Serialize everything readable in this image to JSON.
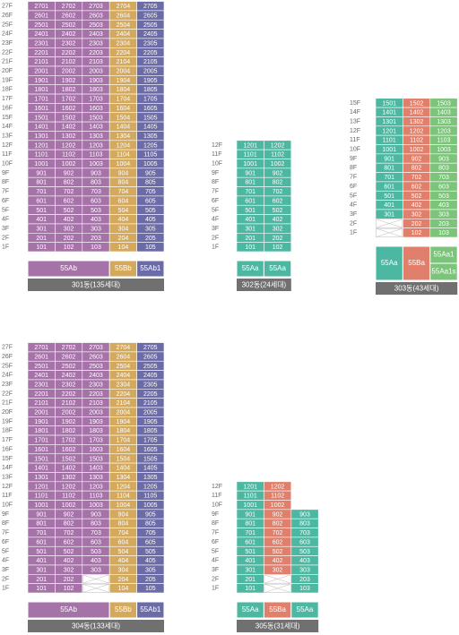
{
  "buildings": [
    {
      "name": "301동(135세대)",
      "colors": [
        "#a673a9",
        "#a673a9",
        "#a673a9",
        "#d5a95c",
        "#6b6ba7"
      ],
      "floors": [
        {
          "label": "27F",
          "units": [
            "2701",
            "2702",
            "2703",
            "2704",
            "2705"
          ]
        },
        {
          "label": "26F",
          "units": [
            "2601",
            "2602",
            "2603",
            "2604",
            "2605"
          ]
        },
        {
          "label": "25F",
          "units": [
            "2501",
            "2502",
            "2503",
            "2504",
            "2505"
          ]
        },
        {
          "label": "24F",
          "units": [
            "2401",
            "2402",
            "2403",
            "2404",
            "2405"
          ]
        },
        {
          "label": "23F",
          "units": [
            "2301",
            "2302",
            "2303",
            "2304",
            "2305"
          ]
        },
        {
          "label": "22F",
          "units": [
            "2201",
            "2202",
            "2203",
            "2204",
            "2205"
          ]
        },
        {
          "label": "21F",
          "units": [
            "2101",
            "2102",
            "2103",
            "2104",
            "2105"
          ]
        },
        {
          "label": "20F",
          "units": [
            "2001",
            "2002",
            "2003",
            "2004",
            "2005"
          ]
        },
        {
          "label": "19F",
          "units": [
            "1901",
            "1902",
            "1903",
            "1904",
            "1905"
          ]
        },
        {
          "label": "18F",
          "units": [
            "1801",
            "1802",
            "1803",
            "1804",
            "1805"
          ]
        },
        {
          "label": "17F",
          "units": [
            "1701",
            "1702",
            "1703",
            "1704",
            "1705"
          ]
        },
        {
          "label": "16F",
          "units": [
            "1601",
            "1602",
            "1603",
            "1604",
            "1605"
          ]
        },
        {
          "label": "15F",
          "units": [
            "1501",
            "1502",
            "1503",
            "1504",
            "1505"
          ]
        },
        {
          "label": "14F",
          "units": [
            "1401",
            "1402",
            "1403",
            "1404",
            "1405"
          ]
        },
        {
          "label": "13F",
          "units": [
            "1301",
            "1302",
            "1303",
            "1304",
            "1305"
          ]
        },
        {
          "label": "12F",
          "units": [
            "1201",
            "1202",
            "1203",
            "1204",
            "1205"
          ]
        },
        {
          "label": "11F",
          "units": [
            "1101",
            "1102",
            "1103",
            "1104",
            "1105"
          ]
        },
        {
          "label": "10F",
          "units": [
            "1001",
            "1002",
            "1003",
            "1004",
            "1005"
          ]
        },
        {
          "label": "9F",
          "units": [
            "901",
            "902",
            "903",
            "904",
            "905"
          ]
        },
        {
          "label": "8F",
          "units": [
            "801",
            "802",
            "803",
            "804",
            "805"
          ]
        },
        {
          "label": "7F",
          "units": [
            "701",
            "702",
            "703",
            "704",
            "705"
          ]
        },
        {
          "label": "6F",
          "units": [
            "601",
            "602",
            "603",
            "604",
            "605"
          ]
        },
        {
          "label": "5F",
          "units": [
            "501",
            "502",
            "503",
            "504",
            "505"
          ]
        },
        {
          "label": "4F",
          "units": [
            "401",
            "402",
            "403",
            "404",
            "405"
          ]
        },
        {
          "label": "3F",
          "units": [
            "301",
            "302",
            "303",
            "304",
            "305"
          ]
        },
        {
          "label": "2F",
          "units": [
            "201",
            "202",
            "203",
            "204",
            "205"
          ]
        },
        {
          "label": "1F",
          "units": [
            "101",
            "102",
            "103",
            "104",
            "105"
          ]
        }
      ],
      "types": [
        {
          "label": "55Ab",
          "span": 3,
          "color": "#a673a9"
        },
        {
          "label": "55Bb",
          "span": 1,
          "color": "#d5a95c"
        },
        {
          "label": "55Ab1",
          "span": 1,
          "color": "#6b6ba7"
        }
      ]
    },
    {
      "name": "302동(24세대)",
      "colors": [
        "#4db8a2",
        "#4db8a2"
      ],
      "floors": [
        {
          "label": "12F",
          "units": [
            "1201",
            "1202"
          ]
        },
        {
          "label": "11F",
          "units": [
            "1101",
            "1102"
          ]
        },
        {
          "label": "10F",
          "units": [
            "1001",
            "1002"
          ]
        },
        {
          "label": "9F",
          "units": [
            "901",
            "902"
          ]
        },
        {
          "label": "8F",
          "units": [
            "801",
            "802"
          ]
        },
        {
          "label": "7F",
          "units": [
            "701",
            "702"
          ]
        },
        {
          "label": "6F",
          "units": [
            "601",
            "602"
          ]
        },
        {
          "label": "5F",
          "units": [
            "501",
            "502"
          ]
        },
        {
          "label": "4F",
          "units": [
            "401",
            "402"
          ]
        },
        {
          "label": "3F",
          "units": [
            "301",
            "302"
          ]
        },
        {
          "label": "2F",
          "units": [
            "201",
            "202"
          ]
        },
        {
          "label": "1F",
          "units": [
            "101",
            "102"
          ]
        }
      ],
      "types": [
        {
          "label": "55Aa",
          "span": 1,
          "color": "#4db8a2"
        },
        {
          "label": "55Aa",
          "span": 1,
          "color": "#4db8a2"
        }
      ]
    },
    {
      "name": "303동(43세대)",
      "colors": [
        "#4db8a2",
        "#e0806c",
        "#7cc47a"
      ],
      "floors": [
        {
          "label": "15F",
          "units": [
            "1501",
            "1502",
            "1503"
          ]
        },
        {
          "label": "14F",
          "units": [
            "1401",
            "1402",
            "1403"
          ]
        },
        {
          "label": "13F",
          "units": [
            "1301",
            "1302",
            "1303"
          ]
        },
        {
          "label": "12F",
          "units": [
            "1201",
            "1202",
            "1203"
          ]
        },
        {
          "label": "11F",
          "units": [
            "1101",
            "1102",
            "1103"
          ]
        },
        {
          "label": "10F",
          "units": [
            "1001",
            "1002",
            "1003"
          ]
        },
        {
          "label": "9F",
          "units": [
            "901",
            "902",
            "903"
          ]
        },
        {
          "label": "8F",
          "units": [
            "801",
            "802",
            "803"
          ]
        },
        {
          "label": "7F",
          "units": [
            "701",
            "702",
            "703"
          ]
        },
        {
          "label": "6F",
          "units": [
            "601",
            "602",
            "603"
          ]
        },
        {
          "label": "5F",
          "units": [
            "501",
            "502",
            "503"
          ]
        },
        {
          "label": "4F",
          "units": [
            "401",
            "402",
            "403"
          ]
        },
        {
          "label": "3F",
          "units": [
            "301",
            "302",
            "303"
          ]
        },
        {
          "label": "2F",
          "units": [
            null,
            "202",
            "203"
          ]
        },
        {
          "label": "1F",
          "units": [
            null,
            "102",
            "103"
          ]
        }
      ],
      "types": [
        {
          "label": "55Aa",
          "span": 1,
          "color": "#4db8a2"
        },
        {
          "label": "55Ba",
          "span": 1,
          "color": "#e0806c"
        },
        {
          "labels": [
            "55Aa1",
            "55Aa1s"
          ],
          "span": 1,
          "color": "#7cc47a"
        }
      ]
    },
    {
      "name": "304동(133세대)",
      "colors": [
        "#a673a9",
        "#a673a9",
        "#a673a9",
        "#d5a95c",
        "#6b6ba7"
      ],
      "floors": [
        {
          "label": "27F",
          "units": [
            "2701",
            "2702",
            "2703",
            "2704",
            "2705"
          ]
        },
        {
          "label": "26F",
          "units": [
            "2601",
            "2602",
            "2603",
            "2604",
            "2605"
          ]
        },
        {
          "label": "25F",
          "units": [
            "2501",
            "2502",
            "2503",
            "2504",
            "2505"
          ]
        },
        {
          "label": "24F",
          "units": [
            "2401",
            "2402",
            "2403",
            "2404",
            "2405"
          ]
        },
        {
          "label": "23F",
          "units": [
            "2301",
            "2302",
            "2303",
            "2304",
            "2305"
          ]
        },
        {
          "label": "22F",
          "units": [
            "2201",
            "2202",
            "2203",
            "2204",
            "2205"
          ]
        },
        {
          "label": "21F",
          "units": [
            "2101",
            "2102",
            "2103",
            "2104",
            "2105"
          ]
        },
        {
          "label": "20F",
          "units": [
            "2001",
            "2002",
            "2003",
            "2004",
            "2005"
          ]
        },
        {
          "label": "19F",
          "units": [
            "1901",
            "1902",
            "1903",
            "1904",
            "1905"
          ]
        },
        {
          "label": "18F",
          "units": [
            "1801",
            "1802",
            "1803",
            "1804",
            "1805"
          ]
        },
        {
          "label": "17F",
          "units": [
            "1701",
            "1702",
            "1703",
            "1704",
            "1705"
          ]
        },
        {
          "label": "16F",
          "units": [
            "1601",
            "1602",
            "1603",
            "1604",
            "1605"
          ]
        },
        {
          "label": "15F",
          "units": [
            "1501",
            "1502",
            "1503",
            "1504",
            "1505"
          ]
        },
        {
          "label": "14F",
          "units": [
            "1401",
            "1402",
            "1403",
            "1404",
            "1405"
          ]
        },
        {
          "label": "13F",
          "units": [
            "1301",
            "1302",
            "1303",
            "1304",
            "1305"
          ]
        },
        {
          "label": "12F",
          "units": [
            "1201",
            "1202",
            "1203",
            "1204",
            "1205"
          ]
        },
        {
          "label": "11F",
          "units": [
            "1101",
            "1102",
            "1103",
            "1104",
            "1105"
          ]
        },
        {
          "label": "10F",
          "units": [
            "1001",
            "1002",
            "1003",
            "1004",
            "1005"
          ]
        },
        {
          "label": "9F",
          "units": [
            "901",
            "902",
            "903",
            "904",
            "905"
          ]
        },
        {
          "label": "8F",
          "units": [
            "801",
            "802",
            "803",
            "804",
            "805"
          ]
        },
        {
          "label": "7F",
          "units": [
            "701",
            "702",
            "703",
            "704",
            "705"
          ]
        },
        {
          "label": "6F",
          "units": [
            "601",
            "602",
            "603",
            "604",
            "605"
          ]
        },
        {
          "label": "5F",
          "units": [
            "501",
            "502",
            "503",
            "504",
            "505"
          ]
        },
        {
          "label": "4F",
          "units": [
            "401",
            "402",
            "403",
            "404",
            "405"
          ]
        },
        {
          "label": "3F",
          "units": [
            "301",
            "302",
            "303",
            "304",
            "305"
          ]
        },
        {
          "label": "2F",
          "units": [
            "201",
            "202",
            null,
            "204",
            "205"
          ]
        },
        {
          "label": "1F",
          "units": [
            "101",
            "102",
            null,
            "104",
            "105"
          ]
        }
      ],
      "types": [
        {
          "label": "55Ab",
          "span": 3,
          "color": "#a673a9"
        },
        {
          "label": "55Bb",
          "span": 1,
          "color": "#d5a95c"
        },
        {
          "label": "55Ab1",
          "span": 1,
          "color": "#6b6ba7"
        }
      ]
    },
    {
      "name": "305동(31세대)",
      "colors": [
        "#4db8a2",
        "#e0806c",
        "#4db8a2"
      ],
      "floors": [
        {
          "label": "12F",
          "units": [
            "1201",
            "1202"
          ]
        },
        {
          "label": "11F",
          "units": [
            "1101",
            "1102"
          ]
        },
        {
          "label": "10F",
          "units": [
            "1001",
            "1002"
          ]
        },
        {
          "label": "9F",
          "units": [
            "901",
            "902",
            "903"
          ]
        },
        {
          "label": "8F",
          "units": [
            "801",
            "802",
            "803"
          ]
        },
        {
          "label": "7F",
          "units": [
            "701",
            "702",
            "703"
          ]
        },
        {
          "label": "6F",
          "units": [
            "601",
            "602",
            "603"
          ]
        },
        {
          "label": "5F",
          "units": [
            "501",
            "502",
            "503"
          ]
        },
        {
          "label": "4F",
          "units": [
            "401",
            "402",
            "403"
          ]
        },
        {
          "label": "3F",
          "units": [
            "301",
            "302",
            "303"
          ]
        },
        {
          "label": "2F",
          "units": [
            "201",
            null,
            "203"
          ]
        },
        {
          "label": "1F",
          "units": [
            "101",
            null,
            "103"
          ]
        }
      ],
      "types": [
        {
          "label": "55Aa",
          "span": 1,
          "color": "#4db8a2"
        },
        {
          "label": "55Ba",
          "span": 1,
          "color": "#e0806c"
        },
        {
          "label": "55Aa",
          "span": 1,
          "color": "#4db8a2"
        }
      ]
    }
  ]
}
